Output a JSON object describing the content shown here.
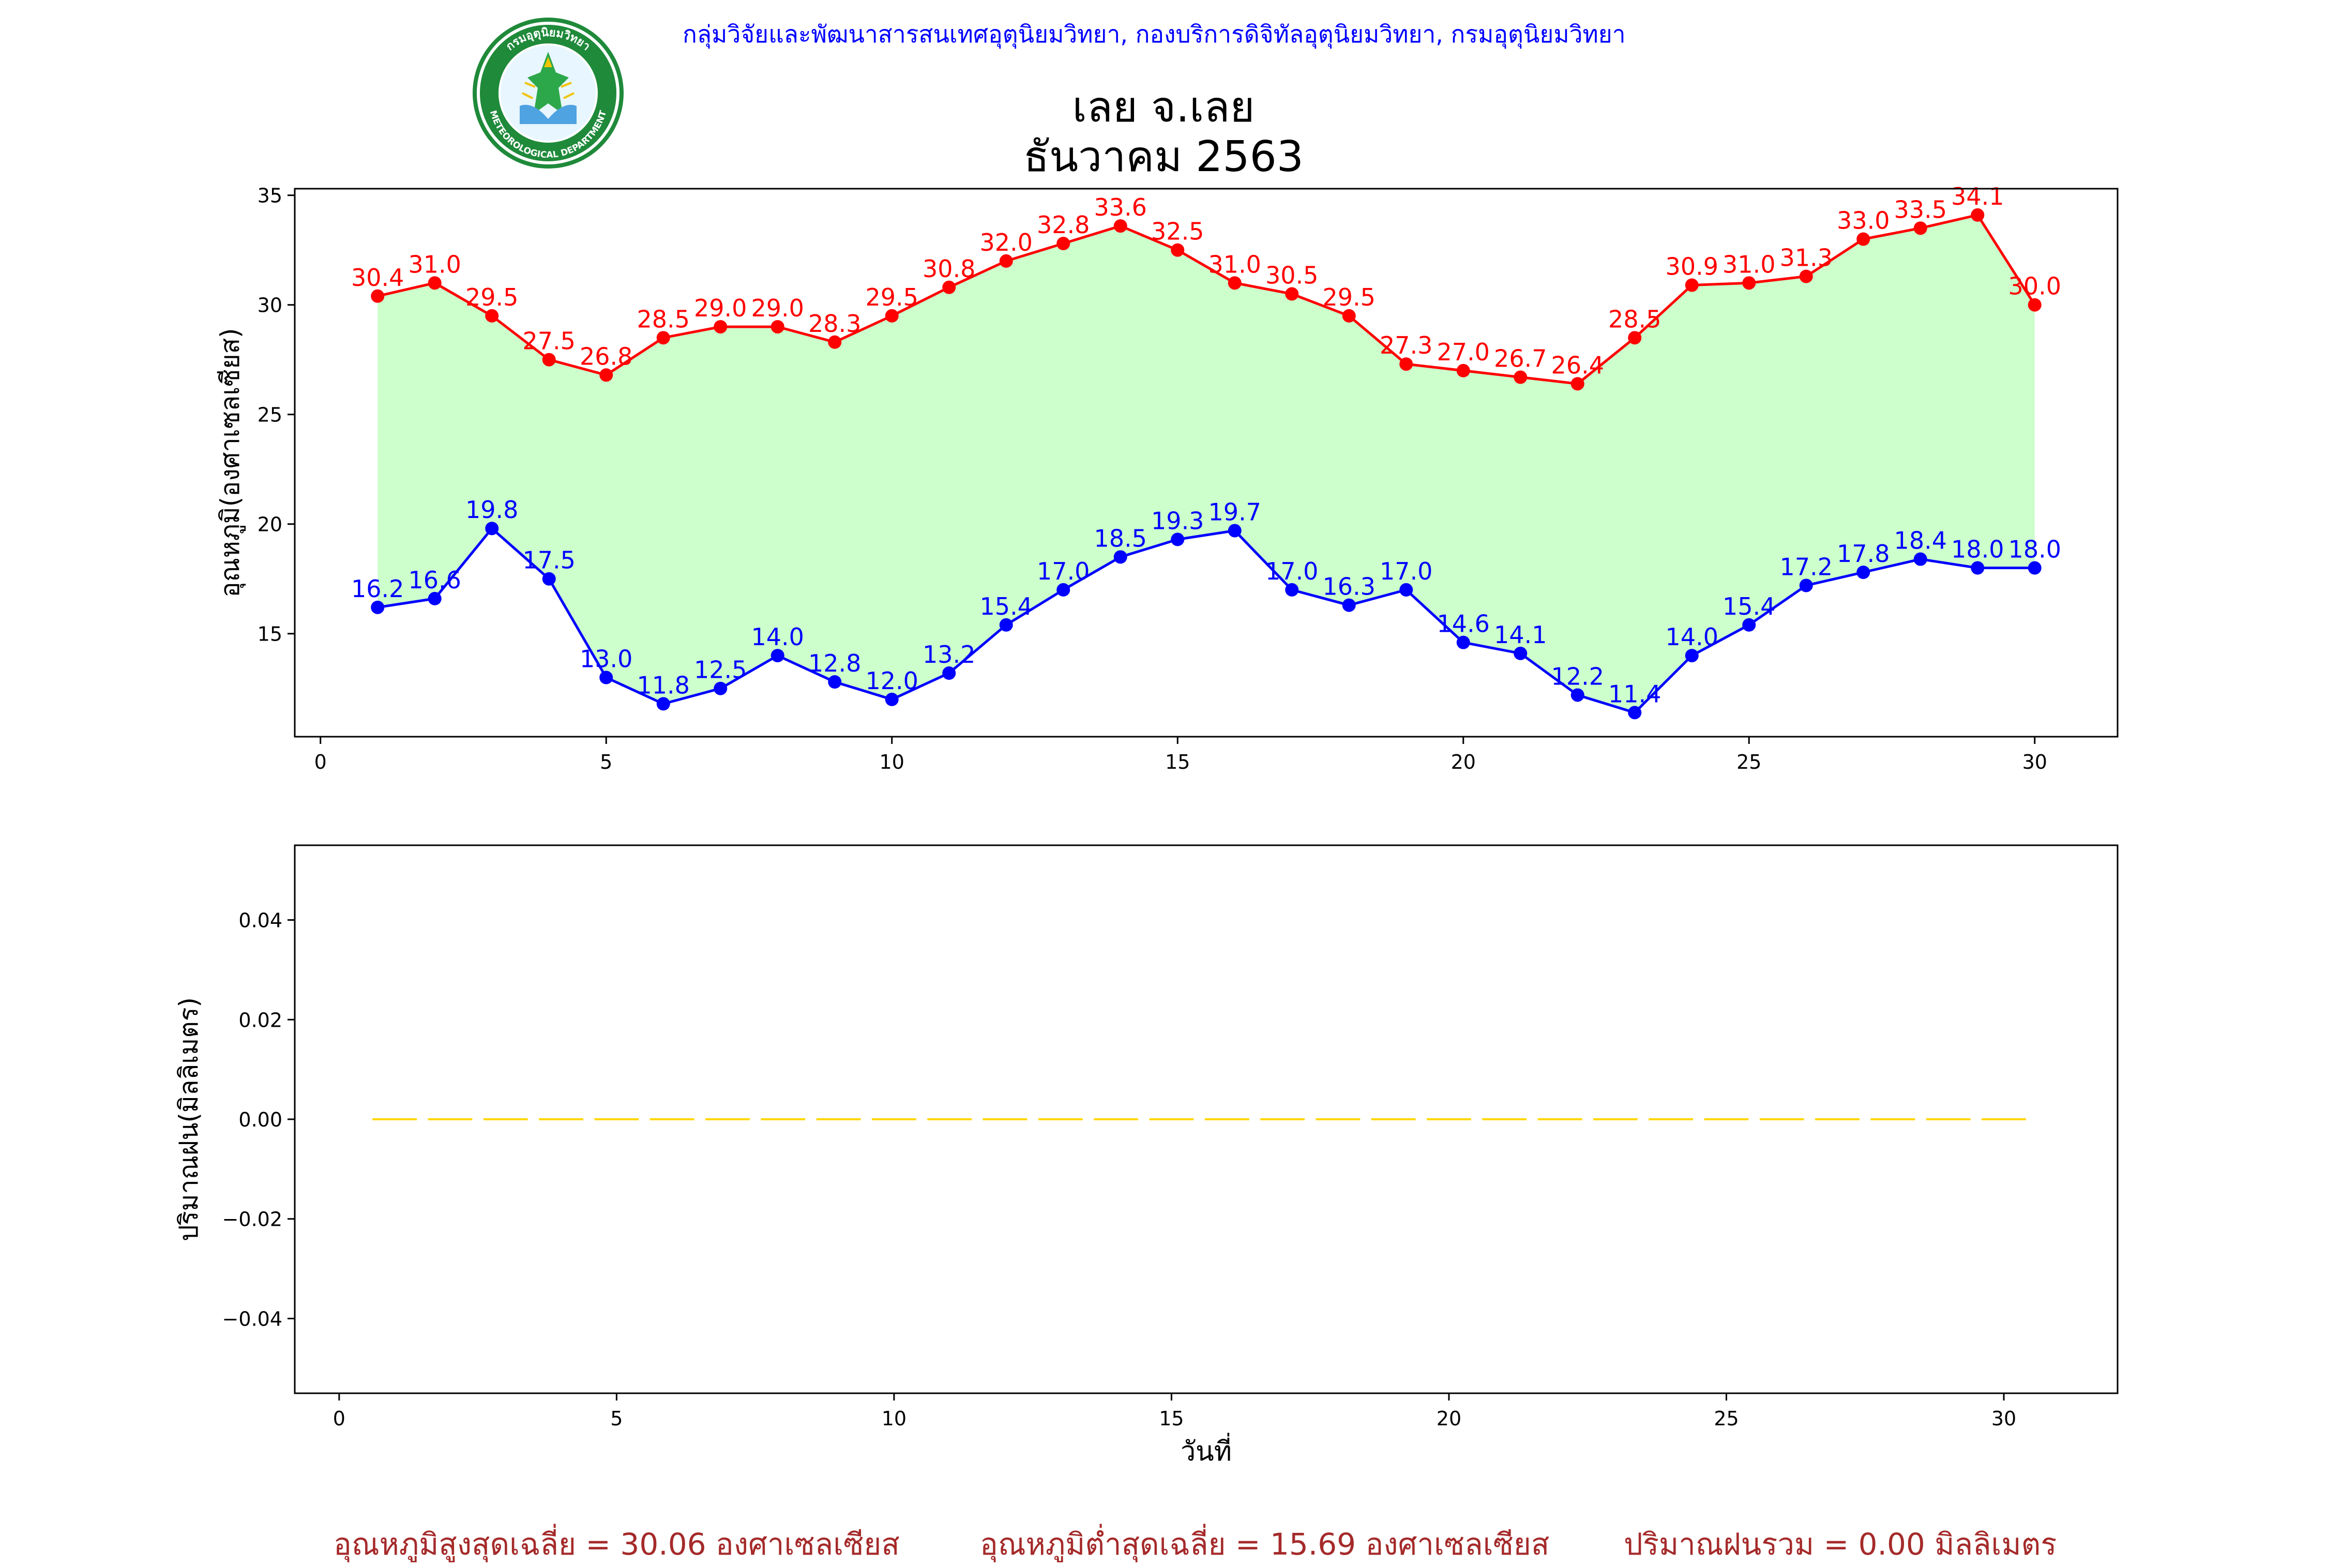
{
  "header": {
    "agency": "กลุ่มวิจัยและพัฒนาสารสนเทศอุตุนิยมวิทยา, กองบริการดิจิทัลอุตุนิยมวิทยา, กรมอุตุนิยมวิทยา",
    "title_line1": "เลย จ.เลย",
    "title_line2": "ธันวาคม 2563",
    "logo_text": "METEOROLOGICAL DEPARTMENT",
    "logo_text_top": "กรมอุตุนิยมวิทยา"
  },
  "colors": {
    "max": "#ff0000",
    "min": "#0000ff",
    "fill": "#ccffcc",
    "rain": "#ffd700",
    "summary": "#a52a2a",
    "agency": "#0000ff"
  },
  "chart_data": [
    {
      "type": "line",
      "title": "",
      "xlabel": "",
      "ylabel": "อุณหภูมิ(องศาเซลเซียส)",
      "xlim": [
        -0.45,
        31.45
      ],
      "ylim": [
        10.3,
        35.3
      ],
      "xticks": [
        0,
        5,
        10,
        15,
        20,
        25,
        30
      ],
      "yticks": [
        15,
        20,
        25,
        30,
        35
      ],
      "grid": false,
      "fill_between": true,
      "x": [
        1,
        2,
        3,
        4,
        5,
        6,
        7,
        8,
        9,
        10,
        11,
        12,
        13,
        14,
        15,
        16,
        17,
        18,
        19,
        20,
        21,
        22,
        23,
        24,
        25,
        26,
        27,
        28,
        29,
        30
      ],
      "series": [
        {
          "key": "max",
          "values": [
            30.4,
            31.0,
            29.5,
            27.5,
            26.8,
            28.5,
            29.0,
            29.0,
            28.3,
            29.5,
            30.8,
            32.0,
            32.8,
            33.6,
            32.5,
            31.0,
            30.5,
            29.5,
            27.3,
            27.0,
            26.7,
            26.4,
            28.5,
            30.9,
            31.0,
            31.3,
            33.0,
            33.5,
            34.1,
            30.0
          ]
        },
        {
          "key": "min",
          "values": [
            16.2,
            16.6,
            19.8,
            17.5,
            13.0,
            11.8,
            12.5,
            14.0,
            12.8,
            12.0,
            13.2,
            15.4,
            17.0,
            18.5,
            19.3,
            19.7,
            17.0,
            16.3,
            17.0,
            14.6,
            14.1,
            12.2,
            11.4,
            14.0,
            15.4,
            17.2,
            17.8,
            18.4,
            18.0,
            18.0
          ]
        }
      ]
    },
    {
      "type": "bar",
      "title": "",
      "xlabel": "วันที่",
      "ylabel": "ปริมาณฝน(มิลลิเมตร)",
      "xlim": [
        -0.8,
        32.05
      ],
      "ylim": [
        -0.055,
        0.055
      ],
      "xticks": [
        0,
        5,
        10,
        15,
        20,
        25,
        30
      ],
      "yticks": [
        -0.04,
        -0.02,
        0.0,
        0.02,
        0.04
      ],
      "ytick_labels": [
        "−0.04",
        "−0.02",
        "0.00",
        "0.02",
        "0.04"
      ],
      "grid": false,
      "x": [
        1,
        2,
        3,
        4,
        5,
        6,
        7,
        8,
        9,
        10,
        11,
        12,
        13,
        14,
        15,
        16,
        17,
        18,
        19,
        20,
        21,
        22,
        23,
        24,
        25,
        26,
        27,
        28,
        29,
        30
      ],
      "values": [
        0,
        0,
        0,
        0,
        0,
        0,
        0,
        0,
        0,
        0,
        0,
        0,
        0,
        0,
        0,
        0,
        0,
        0,
        0,
        0,
        0,
        0,
        0,
        0,
        0,
        0,
        0,
        0,
        0,
        0
      ]
    }
  ],
  "summary": {
    "avg_max": "อุณหภูมิสูงสุดเฉลี่ย = 30.06 องศาเซลเซียส",
    "avg_min": "อุณหภูมิต่ำสุดเฉลี่ย = 15.69 องศาเซลเซียส",
    "rain_total": "ปริมาณฝนรวม = 0.00 มิลลิเมตร"
  }
}
